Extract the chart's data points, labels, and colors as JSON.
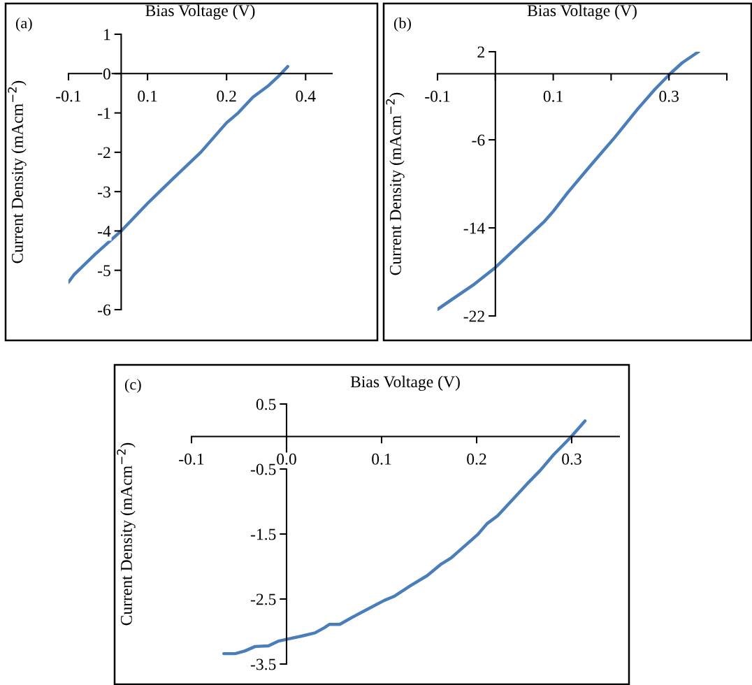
{
  "chart_data": [
    {
      "type": "line",
      "xlabel": "Bias Voltage (V)",
      "ylabel": "Current Density (mAcm$^{−2}$)",
      "annotations": [
        "(a)"
      ],
      "xlim": [
        -0.1,
        0.4
      ],
      "ylim": [
        -6,
        1
      ],
      "xticks": [
        {
          "value": -0.1,
          "label": "-0.1"
        },
        {
          "value": 0.05,
          "label": "0.1"
        },
        {
          "value": 0.2,
          "label": "0.2"
        },
        {
          "value": 0.35,
          "label": "0.4"
        }
      ],
      "yticks": [
        {
          "value": 1,
          "label": "1"
        },
        {
          "value": 0,
          "label": "0"
        },
        {
          "value": -1,
          "label": "-1"
        },
        {
          "value": -2,
          "label": "-2"
        },
        {
          "value": -3,
          "label": "-3"
        },
        {
          "value": -4,
          "label": "-4"
        },
        {
          "value": -5,
          "label": "-5"
        },
        {
          "value": -6,
          "label": "-6"
        }
      ],
      "grid": false,
      "marker": "none",
      "line_style": "solid",
      "series": [
        {
          "color": "#4a7ebb",
          "x": [
            -0.1,
            -0.09,
            -0.05,
            0,
            0.05,
            0.073,
            0.1,
            0.151,
            0.2,
            0.222,
            0.25,
            0.28,
            0.3,
            0.316
          ],
          "values": [
            -5.3,
            -5.12,
            -4.6,
            -4.0,
            -3.3,
            -3.0,
            -2.65,
            -2.0,
            -1.25,
            -1.0,
            -0.6,
            -0.3,
            -0.05,
            0.18
          ]
        }
      ]
    },
    {
      "type": "line",
      "xlabel": "Bias Voltage (V)",
      "ylabel": "Current Density (mAcm$^{−2}$)",
      "annotations": [
        "(b)"
      ],
      "xlim": [
        -0.1,
        0.4
      ],
      "ylim": [
        -22,
        2
      ],
      "xticks": [
        {
          "value": -0.1,
          "label": "-0.1"
        },
        {
          "value": 0,
          "label": null
        },
        {
          "value": 0.1,
          "label": "0.1"
        },
        {
          "value": 0.2,
          "label": null
        },
        {
          "value": 0.3,
          "label": "0.3"
        },
        {
          "value": 0.4,
          "label": null
        }
      ],
      "yticks": [
        {
          "value": 2,
          "label": "2"
        },
        {
          "value": -6,
          "label": "-6"
        },
        {
          "value": -14,
          "label": "-14"
        },
        {
          "value": -22,
          "label": "-22"
        }
      ],
      "grid": false,
      "marker": "none",
      "line_style": "solid",
      "series": [
        {
          "color": "#4a7ebb",
          "x": [
            -0.1,
            -0.036,
            0,
            0.022,
            0.085,
            0.1,
            0.125,
            0.165,
            0.206,
            0.246,
            0.276,
            0.302,
            0.323,
            0.351
          ],
          "values": [
            -21.4,
            -19.1,
            -17.6,
            -16.5,
            -13.4,
            -12.5,
            -10.8,
            -8.3,
            -5.8,
            -3.2,
            -1.4,
            0,
            1.0,
            2.0
          ]
        }
      ]
    },
    {
      "type": "line",
      "xlabel": "Bias Voltage (V)",
      "ylabel": "Current Density (mAcm$^{−2}$)",
      "annotations": [
        "(c)"
      ],
      "xlim": [
        -0.1,
        0.35
      ],
      "ylim": [
        -3.5,
        0.5
      ],
      "xticks": [
        {
          "value": -0.1,
          "label": "-0.1"
        },
        {
          "value": 0,
          "label": "0.0"
        },
        {
          "value": 0.1,
          "label": "0.1"
        },
        {
          "value": 0.2,
          "label": "0.2"
        },
        {
          "value": 0.3,
          "label": "0.3"
        }
      ],
      "yticks": [
        {
          "value": 0.5,
          "label": "0.5"
        },
        {
          "value": -0.5,
          "label": "-0.5"
        },
        {
          "value": -1.5,
          "label": "-1.5"
        },
        {
          "value": -2.5,
          "label": "-2.5"
        },
        {
          "value": -3.5,
          "label": "-3.5"
        }
      ],
      "grid": false,
      "marker": "none",
      "line_style": "solid",
      "series": [
        {
          "color": "#4a7ebb",
          "x": [
            -0.066,
            -0.054,
            -0.044,
            -0.033,
            -0.019,
            -0.009,
            0,
            0.016,
            0.03,
            0.04,
            0.045,
            0.056,
            0.068,
            0.086,
            0.103,
            0.113,
            0.131,
            0.148,
            0.162,
            0.173,
            0.187,
            0.201,
            0.211,
            0.222,
            0.236,
            0.253,
            0.267,
            0.281,
            0.299,
            0.314
          ],
          "values": [
            -3.34,
            -3.34,
            -3.3,
            -3.23,
            -3.22,
            -3.15,
            -3.12,
            -3.07,
            -3.02,
            -2.94,
            -2.89,
            -2.89,
            -2.79,
            -2.65,
            -2.52,
            -2.46,
            -2.29,
            -2.14,
            -1.97,
            -1.87,
            -1.69,
            -1.51,
            -1.34,
            -1.22,
            -1.0,
            -0.73,
            -0.52,
            -0.28,
            -0.01,
            0.24
          ]
        }
      ]
    }
  ]
}
